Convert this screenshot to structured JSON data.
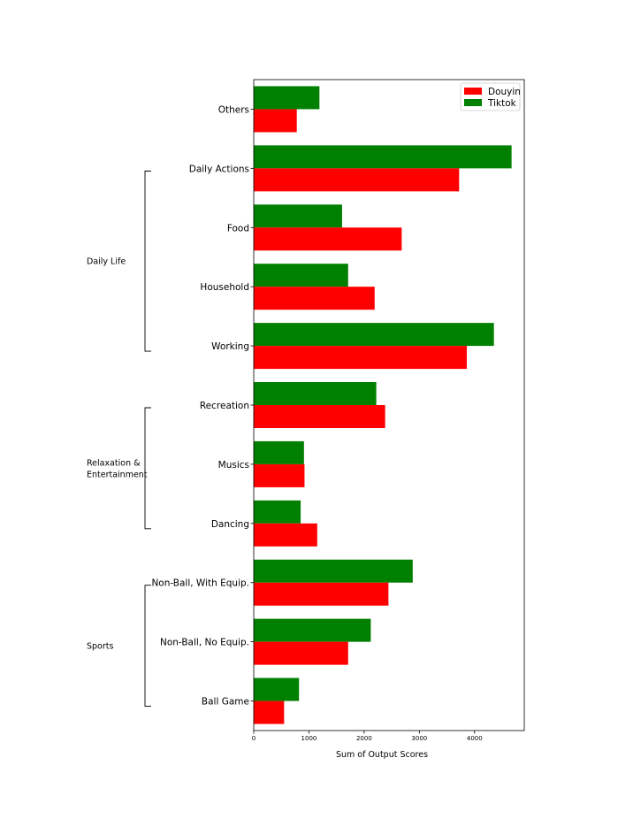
{
  "chart_data": {
    "type": "bar",
    "orientation": "horizontal",
    "title": "",
    "xlabel": "Sum of Output Scores",
    "ylabel": "",
    "xlim": [
      0,
      4900
    ],
    "xticks": [
      0,
      1000,
      2000,
      3000,
      4000
    ],
    "grid": false,
    "legend_position": "top-right",
    "categories": [
      "Others",
      "Daily Actions",
      "Food",
      "Household",
      "Working",
      "Recreation",
      "Musics",
      "Dancing",
      "Non-Ball, With Equip.",
      "Non-Ball, No Equip.",
      "Ball Game"
    ],
    "series": [
      {
        "name": "Douyin",
        "color": "#ff0000",
        "values": [
          780,
          3720,
          2680,
          2190,
          3860,
          2380,
          920,
          1150,
          2440,
          1710,
          550
        ]
      },
      {
        "name": "Tiktok",
        "color": "#008000",
        "values": [
          1190,
          4670,
          1600,
          1710,
          4350,
          2220,
          910,
          850,
          2880,
          2120,
          820
        ]
      }
    ],
    "groups": [
      {
        "label": "Daily Life",
        "lines": [
          "Daily Life"
        ],
        "from": "Daily Actions",
        "to": "Working"
      },
      {
        "label": "Relaxation & Entertainment",
        "lines": [
          "Relaxation &",
          "Entertainment"
        ],
        "from": "Recreation",
        "to": "Dancing"
      },
      {
        "label": "Sports",
        "lines": [
          "Sports"
        ],
        "from": "Non-Ball, With Equip.",
        "to": "Ball Game"
      }
    ]
  }
}
